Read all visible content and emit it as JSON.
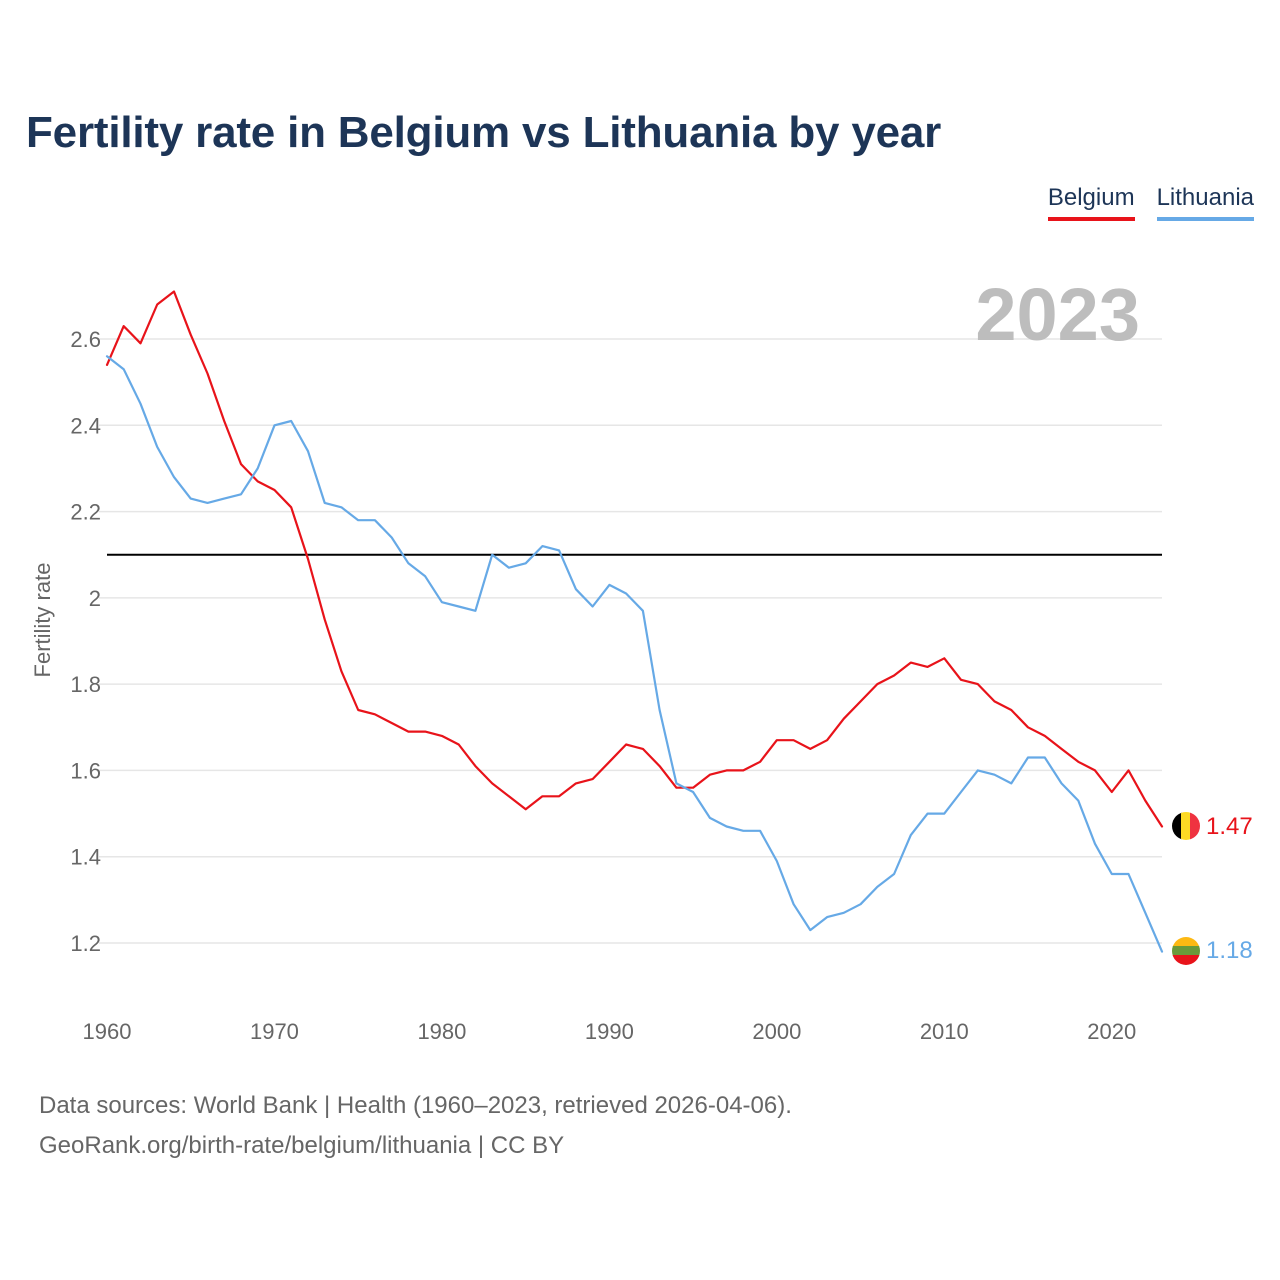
{
  "title": "Fertility rate in Belgium vs Lithuania by year",
  "legend": {
    "belgium": "Belgium",
    "lithuania": "Lithuania"
  },
  "footer": {
    "sources": "Data sources: World Bank | Health (1960–2023, retrieved 2026-04-06).",
    "credit": "GeoRank.org/birth-rate/belgium/lithuania | CC BY"
  },
  "chart_data": {
    "type": "line",
    "title": "Fertility rate in Belgium vs Lithuania by year",
    "ylabel": "Fertility rate",
    "xlabel": "",
    "year_label": "2023",
    "xlim": [
      1960,
      2023
    ],
    "ylim": [
      1.06,
      2.8
    ],
    "x_ticks": [
      1960,
      1970,
      1980,
      1990,
      2000,
      2010,
      2020
    ],
    "y_ticks": [
      1.2,
      1.4,
      1.6,
      1.8,
      2,
      2.2,
      2.4,
      2.6
    ],
    "y_tick_labels": [
      "1.2",
      "1.4",
      "1.6",
      "1.8",
      "2",
      "2.2",
      "2.4",
      "2.6"
    ],
    "reference_line": 2.1,
    "grid": "horizontal",
    "legend_position": "top-right",
    "colors": {
      "belgium": "#e8131a",
      "lithuania": "#66a9e6",
      "reference": "#000000",
      "grid": "#e6e6e6",
      "year": "#bdbdbd"
    },
    "years": [
      1960,
      1961,
      1962,
      1963,
      1964,
      1965,
      1966,
      1967,
      1968,
      1969,
      1970,
      1971,
      1972,
      1973,
      1974,
      1975,
      1976,
      1977,
      1978,
      1979,
      1980,
      1981,
      1982,
      1983,
      1984,
      1985,
      1986,
      1987,
      1988,
      1989,
      1990,
      1991,
      1992,
      1993,
      1994,
      1995,
      1996,
      1997,
      1998,
      1999,
      2000,
      2001,
      2002,
      2003,
      2004,
      2005,
      2006,
      2007,
      2008,
      2009,
      2010,
      2011,
      2012,
      2013,
      2014,
      2015,
      2016,
      2017,
      2018,
      2019,
      2020,
      2021,
      2022,
      2023
    ],
    "series": [
      {
        "name": "Belgium",
        "color": "#e8131a",
        "end_label": "1.47",
        "values": [
          2.54,
          2.63,
          2.59,
          2.68,
          2.71,
          2.61,
          2.52,
          2.41,
          2.31,
          2.27,
          2.25,
          2.21,
          2.09,
          1.95,
          1.83,
          1.74,
          1.73,
          1.71,
          1.69,
          1.69,
          1.68,
          1.66,
          1.61,
          1.57,
          1.54,
          1.51,
          1.54,
          1.54,
          1.57,
          1.58,
          1.62,
          1.66,
          1.65,
          1.61,
          1.56,
          1.56,
          1.59,
          1.6,
          1.6,
          1.62,
          1.67,
          1.67,
          1.65,
          1.67,
          1.72,
          1.76,
          1.8,
          1.82,
          1.85,
          1.84,
          1.86,
          1.81,
          1.8,
          1.76,
          1.74,
          1.7,
          1.68,
          1.65,
          1.62,
          1.6,
          1.55,
          1.6,
          1.53,
          1.47
        ]
      },
      {
        "name": "Lithuania",
        "color": "#66a9e6",
        "end_label": "1.18",
        "values": [
          2.56,
          2.53,
          2.45,
          2.35,
          2.28,
          2.23,
          2.22,
          2.23,
          2.24,
          2.3,
          2.4,
          2.41,
          2.34,
          2.22,
          2.21,
          2.18,
          2.18,
          2.14,
          2.08,
          2.05,
          1.99,
          1.98,
          1.97,
          2.1,
          2.07,
          2.08,
          2.12,
          2.11,
          2.02,
          1.98,
          2.03,
          2.01,
          1.97,
          1.74,
          1.57,
          1.55,
          1.49,
          1.47,
          1.46,
          1.46,
          1.39,
          1.29,
          1.23,
          1.26,
          1.27,
          1.29,
          1.33,
          1.36,
          1.45,
          1.5,
          1.5,
          1.55,
          1.6,
          1.59,
          1.57,
          1.63,
          1.63,
          1.57,
          1.53,
          1.43,
          1.36,
          1.36,
          1.27,
          1.18
        ]
      }
    ]
  }
}
